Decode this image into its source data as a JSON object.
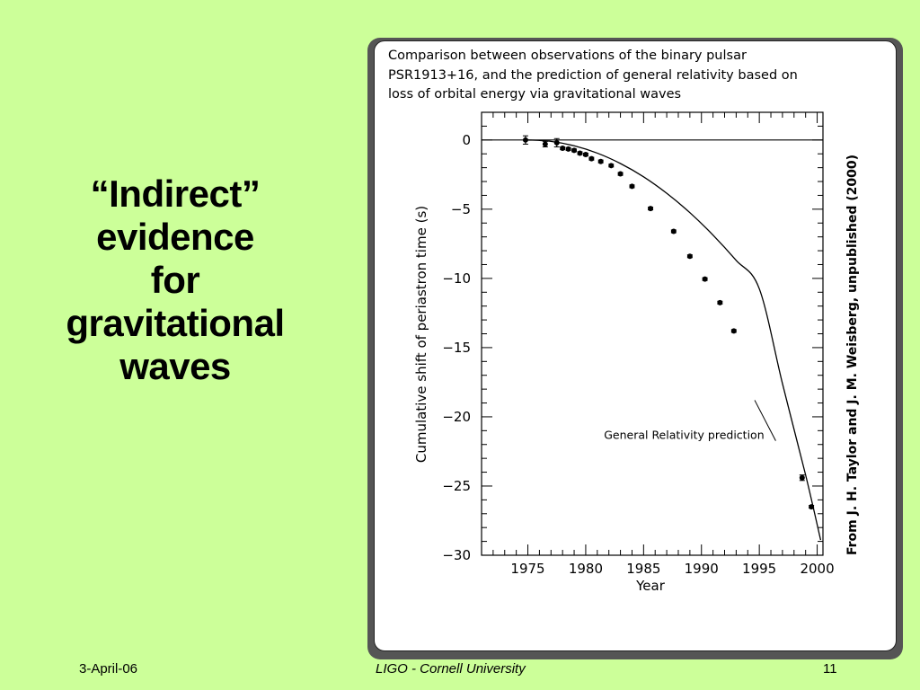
{
  "slide": {
    "title_lines": [
      "“Indirect”",
      "evidence",
      "for",
      "gravitational",
      "waves"
    ]
  },
  "figure": {
    "caption_lines": [
      "Comparison between observations of the binary pulsar",
      "PSR1913+16,  and the prediction of general relativity based on",
      "loss of orbital energy via gravitational waves"
    ],
    "credit": "From  J. H. Taylor and J. M. Weisberg,  unpublished (2000)"
  },
  "chart_data": {
    "type": "scatter",
    "xlabel": "Year",
    "ylabel": "Cumulative shift of periastron time (s)",
    "xlim": [
      1971,
      2000.5
    ],
    "ylim": [
      -30,
      2
    ],
    "x_ticks": [
      1975,
      1980,
      1985,
      1990,
      1995,
      2000
    ],
    "y_ticks": [
      0,
      -5,
      -10,
      -15,
      -20,
      -25,
      -30
    ],
    "x_tick_labels": [
      "1975",
      "1980",
      "1985",
      "1990",
      "1995",
      "2000"
    ],
    "y_tick_labels": [
      "0",
      "−5",
      "−10",
      "−15",
      "−20",
      "−25",
      "−30"
    ],
    "zero_line": true,
    "series": [
      {
        "kind": "curve",
        "x": [
          1975,
          1977,
          1979,
          1981,
          1983,
          1985,
          1987,
          1989,
          1991,
          1993,
          1995,
          1997,
          1999,
          2000.3
        ],
        "y": [
          0,
          -0.1,
          -0.42,
          -0.95,
          -1.7,
          -2.66,
          -3.85,
          -5.25,
          -6.87,
          -8.7,
          -10.75,
          -17.6,
          -24.2,
          -28.9
        ]
      },
      {
        "kind": "points",
        "x": [
          1974.8,
          1976.5,
          1977.5,
          1978.0,
          1978.5,
          1979.0,
          1979.5,
          1980.0,
          1980.5,
          1981.3,
          1982.2,
          1983.0,
          1984.0,
          1985.6,
          1987.6,
          1989.0,
          1990.3,
          1991.6,
          1992.8,
          1998.7,
          1999.5
        ],
        "y": [
          0.0,
          -0.3,
          -0.2,
          -0.6,
          -0.65,
          -0.75,
          -0.95,
          -1.05,
          -1.35,
          -1.55,
          -1.85,
          -2.45,
          -3.35,
          -4.95,
          -6.6,
          -8.4,
          -10.05,
          -11.75,
          -13.8,
          -24.4,
          -26.5
        ],
        "err": [
          0.3,
          0.2,
          0.3,
          0.1,
          0.1,
          0.1,
          0.1,
          0.1,
          0.1,
          0.1,
          0.1,
          0.1,
          0.1,
          0.1,
          0.1,
          0.1,
          0.1,
          0.1,
          0.1,
          0.2,
          0.1
        ]
      }
    ],
    "annotations": [
      {
        "text": "General Relativity prediction",
        "x": 1988.5,
        "y": -21.6,
        "arrow_to": [
          1994.6,
          -18.8
        ]
      }
    ]
  },
  "footer": {
    "date": "3-April-06",
    "center": "LIGO - Cornell University",
    "page": "11"
  }
}
